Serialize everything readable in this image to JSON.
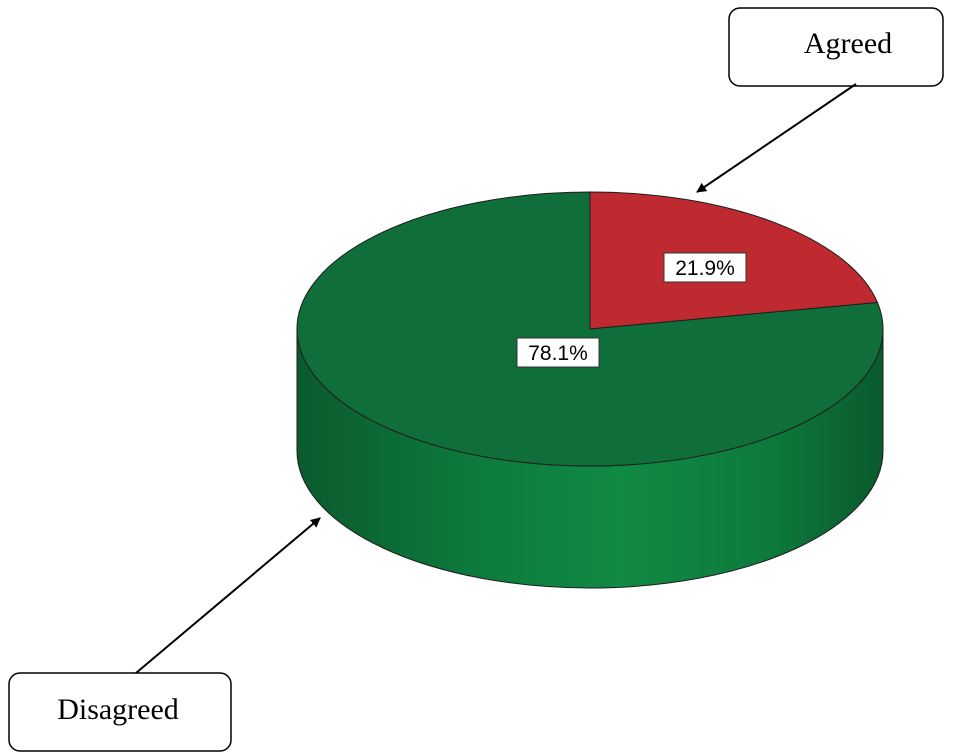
{
  "chart_data": {
    "type": "pie",
    "style": "3d",
    "slices": [
      {
        "label": "Agreed",
        "value": 21.9,
        "data_label": "21.9%",
        "color": "#bf2a30"
      },
      {
        "label": "Disagreed",
        "value": 78.1,
        "data_label": "78.1%",
        "color": "#0f6e3a"
      }
    ],
    "legend": "callouts"
  },
  "callouts": {
    "agreed": "Agreed",
    "disagreed": "Disagreed"
  },
  "colors": {
    "agreed_top": "#bf2a30",
    "disagreed_top": "#0f6e3a",
    "side": "#0e8441",
    "outline": "#1e1e1e"
  }
}
